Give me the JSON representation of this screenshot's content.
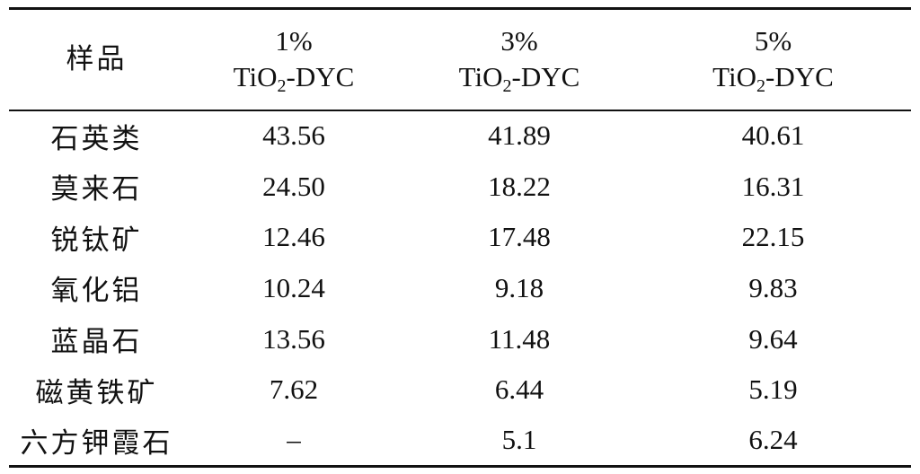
{
  "table": {
    "header": {
      "sample": "样品",
      "columns": [
        {
          "pct": "1%",
          "prefix": "TiO",
          "sub": "2",
          "suffix": "-DYC"
        },
        {
          "pct": "3%",
          "prefix": "TiO",
          "sub": "2",
          "suffix": "-DYC"
        },
        {
          "pct": "5%",
          "prefix": "TiO",
          "sub": "2",
          "suffix": "-DYC"
        }
      ]
    },
    "rows": [
      {
        "name": "石英类",
        "v1": "43.56",
        "v3": "41.89",
        "v5": "40.61"
      },
      {
        "name": "莫来石",
        "v1": "24.50",
        "v3": "18.22",
        "v5": "16.31"
      },
      {
        "name": "锐钛矿",
        "v1": "12.46",
        "v3": "17.48",
        "v5": "22.15"
      },
      {
        "name": "氧化铝",
        "v1": "10.24",
        "v3": "9.18",
        "v5": "9.83"
      },
      {
        "name": "蓝晶石",
        "v1": "13.56",
        "v3": "11.48",
        "v5": "9.64"
      },
      {
        "name": "磁黄铁矿",
        "v1": "7.62",
        "v3": "6.44",
        "v5": "5.19"
      },
      {
        "name": "六方钾霞石",
        "v1": "–",
        "v3": "5.1",
        "v5": "6.24"
      }
    ]
  }
}
